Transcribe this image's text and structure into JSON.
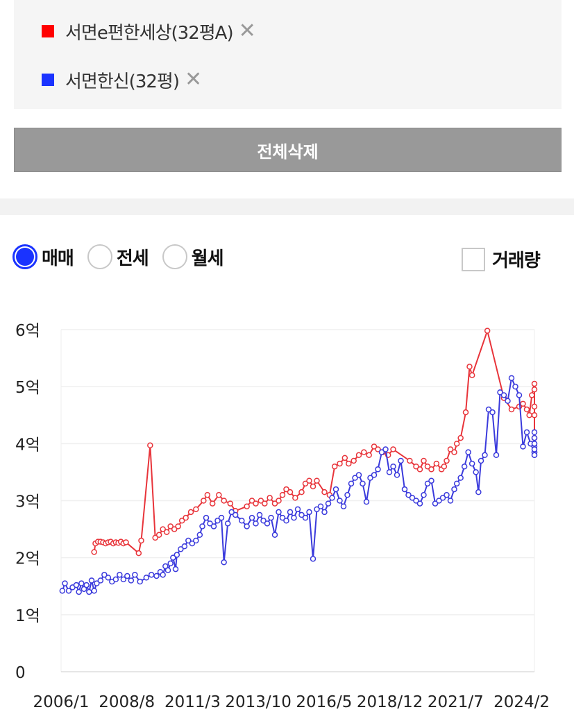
{
  "compare": {
    "items": [
      {
        "label": "서면e편한세상(32평A)",
        "color": "#ff0000"
      },
      {
        "label": "서면한신(32평)",
        "color": "#1a33ff"
      }
    ],
    "close_symbol": "✕",
    "delete_all_label": "전체삭제"
  },
  "options": {
    "deal_types": [
      {
        "label": "매매",
        "selected": true
      },
      {
        "label": "전세",
        "selected": false
      },
      {
        "label": "월세",
        "selected": false
      }
    ],
    "volume_label": "거래량",
    "volume_checked": false
  },
  "chart_data": {
    "type": "line",
    "x_tick_labels": [
      "2006/1",
      "2008/8",
      "2011/3",
      "2013/10",
      "2016/5",
      "2018/12",
      "2021/7",
      "2024/2"
    ],
    "x_ticks": [
      2006.0,
      2008.583,
      2011.167,
      2013.75,
      2016.333,
      2018.917,
      2021.5,
      2024.083
    ],
    "xlim": [
      2006.0,
      2024.6
    ],
    "y_ticks": [
      0,
      1,
      2,
      3,
      4,
      5,
      6
    ],
    "y_tick_labels": [
      "0",
      "1억",
      "2억",
      "3억",
      "4억",
      "5억",
      "6억"
    ],
    "ylim": [
      0,
      6
    ],
    "grid": true,
    "series": [
      {
        "color": "#e8343a",
        "points": [
          [
            2007.3,
            2.1
          ],
          [
            2007.35,
            2.25
          ],
          [
            2007.45,
            2.28
          ],
          [
            2007.55,
            2.28
          ],
          [
            2007.65,
            2.27
          ],
          [
            2007.75,
            2.25
          ],
          [
            2007.85,
            2.27
          ],
          [
            2007.95,
            2.28
          ],
          [
            2008.05,
            2.25
          ],
          [
            2008.15,
            2.27
          ],
          [
            2008.25,
            2.26
          ],
          [
            2008.35,
            2.28
          ],
          [
            2008.45,
            2.25
          ],
          [
            2008.55,
            2.27
          ],
          [
            2009.05,
            2.08
          ],
          [
            2009.15,
            2.3
          ],
          [
            2009.5,
            3.97
          ],
          [
            2009.7,
            2.35
          ],
          [
            2009.85,
            2.4
          ],
          [
            2010.0,
            2.5
          ],
          [
            2010.15,
            2.45
          ],
          [
            2010.3,
            2.55
          ],
          [
            2010.45,
            2.5
          ],
          [
            2010.6,
            2.55
          ],
          [
            2010.75,
            2.65
          ],
          [
            2010.9,
            2.7
          ],
          [
            2011.1,
            2.8
          ],
          [
            2011.3,
            2.85
          ],
          [
            2011.6,
            3.0
          ],
          [
            2011.75,
            3.1
          ],
          [
            2011.95,
            2.95
          ],
          [
            2012.2,
            3.1
          ],
          [
            2012.4,
            3.0
          ],
          [
            2012.65,
            2.95
          ],
          [
            2012.85,
            2.82
          ],
          [
            2013.3,
            2.9
          ],
          [
            2013.5,
            3.0
          ],
          [
            2013.65,
            2.95
          ],
          [
            2013.85,
            3.0
          ],
          [
            2014.0,
            2.95
          ],
          [
            2014.2,
            3.05
          ],
          [
            2014.4,
            2.95
          ],
          [
            2014.55,
            3.0
          ],
          [
            2014.7,
            3.1
          ],
          [
            2014.85,
            3.2
          ],
          [
            2015.0,
            3.15
          ],
          [
            2015.2,
            3.05
          ],
          [
            2015.45,
            3.15
          ],
          [
            2015.6,
            3.3
          ],
          [
            2015.75,
            3.35
          ],
          [
            2015.9,
            3.25
          ],
          [
            2016.05,
            3.35
          ],
          [
            2016.35,
            3.15
          ],
          [
            2016.55,
            3.1
          ],
          [
            2016.75,
            3.6
          ],
          [
            2016.95,
            3.65
          ],
          [
            2017.15,
            3.75
          ],
          [
            2017.3,
            3.65
          ],
          [
            2017.5,
            3.7
          ],
          [
            2017.7,
            3.8
          ],
          [
            2017.9,
            3.85
          ],
          [
            2018.1,
            3.8
          ],
          [
            2018.3,
            3.95
          ],
          [
            2018.45,
            3.9
          ],
          [
            2018.65,
            3.85
          ],
          [
            2018.85,
            3.8
          ],
          [
            2019.05,
            3.9
          ],
          [
            2019.7,
            3.7
          ],
          [
            2019.95,
            3.6
          ],
          [
            2020.1,
            3.55
          ],
          [
            2020.25,
            3.7
          ],
          [
            2020.4,
            3.6
          ],
          [
            2020.55,
            3.55
          ],
          [
            2020.75,
            3.65
          ],
          [
            2020.95,
            3.55
          ],
          [
            2021.05,
            3.6
          ],
          [
            2021.15,
            3.7
          ],
          [
            2021.3,
            3.9
          ],
          [
            2021.45,
            3.85
          ],
          [
            2021.55,
            4.0
          ],
          [
            2021.7,
            4.1
          ],
          [
            2021.9,
            4.55
          ],
          [
            2022.05,
            5.35
          ],
          [
            2022.15,
            5.2
          ],
          [
            2022.75,
            5.98
          ],
          [
            2023.4,
            4.8
          ],
          [
            2023.7,
            4.6
          ],
          [
            2024.0,
            4.65
          ],
          [
            2024.15,
            4.7
          ],
          [
            2024.3,
            4.6
          ],
          [
            2024.4,
            4.5
          ],
          [
            2024.5,
            4.85
          ],
          [
            2024.6,
            5.05
          ],
          [
            2024.7,
            4.95
          ],
          [
            2024.85,
            4.5
          ],
          [
            2024.95,
            4.1
          ],
          [
            2025.05,
            4.65
          ]
        ]
      },
      {
        "color": "#3a3adc",
        "points": [
          [
            2006.05,
            1.42
          ],
          [
            2006.15,
            1.55
          ],
          [
            2006.3,
            1.42
          ],
          [
            2006.45,
            1.48
          ],
          [
            2006.6,
            1.52
          ],
          [
            2006.7,
            1.4
          ],
          [
            2006.8,
            1.55
          ],
          [
            2006.9,
            1.45
          ],
          [
            2007.0,
            1.52
          ],
          [
            2007.1,
            1.4
          ],
          [
            2007.2,
            1.6
          ],
          [
            2007.3,
            1.42
          ],
          [
            2007.4,
            1.55
          ],
          [
            2007.55,
            1.6
          ],
          [
            2007.7,
            1.7
          ],
          [
            2007.85,
            1.65
          ],
          [
            2008.0,
            1.58
          ],
          [
            2008.15,
            1.62
          ],
          [
            2008.3,
            1.7
          ],
          [
            2008.45,
            1.62
          ],
          [
            2008.6,
            1.68
          ],
          [
            2008.75,
            1.6
          ],
          [
            2008.9,
            1.7
          ],
          [
            2009.1,
            1.58
          ],
          [
            2009.35,
            1.65
          ],
          [
            2009.55,
            1.7
          ],
          [
            2009.75,
            1.68
          ],
          [
            2009.9,
            1.75
          ],
          [
            2010.0,
            1.7
          ],
          [
            2010.1,
            1.85
          ],
          [
            2010.2,
            1.78
          ],
          [
            2010.3,
            1.9
          ],
          [
            2010.4,
            2.0
          ],
          [
            2010.5,
            1.8
          ],
          [
            2010.55,
            2.05
          ],
          [
            2010.7,
            2.15
          ],
          [
            2010.85,
            2.2
          ],
          [
            2011.0,
            2.3
          ],
          [
            2011.15,
            2.25
          ],
          [
            2011.3,
            2.3
          ],
          [
            2011.45,
            2.4
          ],
          [
            2011.55,
            2.55
          ],
          [
            2011.7,
            2.7
          ],
          [
            2011.85,
            2.6
          ],
          [
            2012.0,
            2.55
          ],
          [
            2012.15,
            2.65
          ],
          [
            2012.3,
            2.7
          ],
          [
            2012.4,
            1.92
          ],
          [
            2012.55,
            2.6
          ],
          [
            2012.7,
            2.8
          ],
          [
            2012.85,
            2.75
          ],
          [
            2013.1,
            2.65
          ],
          [
            2013.3,
            2.55
          ],
          [
            2013.5,
            2.7
          ],
          [
            2013.65,
            2.6
          ],
          [
            2013.8,
            2.75
          ],
          [
            2013.95,
            2.65
          ],
          [
            2014.1,
            2.6
          ],
          [
            2014.25,
            2.7
          ],
          [
            2014.4,
            2.4
          ],
          [
            2014.55,
            2.8
          ],
          [
            2014.7,
            2.7
          ],
          [
            2014.85,
            2.65
          ],
          [
            2015.0,
            2.8
          ],
          [
            2015.15,
            2.7
          ],
          [
            2015.3,
            2.85
          ],
          [
            2015.45,
            2.75
          ],
          [
            2015.6,
            2.7
          ],
          [
            2015.75,
            2.8
          ],
          [
            2015.9,
            1.98
          ],
          [
            2016.05,
            2.85
          ],
          [
            2016.2,
            2.9
          ],
          [
            2016.35,
            2.8
          ],
          [
            2016.5,
            2.95
          ],
          [
            2016.65,
            3.05
          ],
          [
            2016.8,
            3.2
          ],
          [
            2016.95,
            3.0
          ],
          [
            2017.1,
            2.9
          ],
          [
            2017.25,
            3.1
          ],
          [
            2017.4,
            3.3
          ],
          [
            2017.55,
            3.4
          ],
          [
            2017.7,
            3.45
          ],
          [
            2017.85,
            3.3
          ],
          [
            2018.0,
            2.98
          ],
          [
            2018.15,
            3.4
          ],
          [
            2018.3,
            3.45
          ],
          [
            2018.45,
            3.55
          ],
          [
            2018.6,
            3.85
          ],
          [
            2018.75,
            3.9
          ],
          [
            2018.9,
            3.5
          ],
          [
            2019.05,
            3.6
          ],
          [
            2019.2,
            3.45
          ],
          [
            2019.35,
            3.7
          ],
          [
            2019.5,
            3.2
          ],
          [
            2019.65,
            3.1
          ],
          [
            2019.8,
            3.05
          ],
          [
            2019.95,
            3.0
          ],
          [
            2020.1,
            2.95
          ],
          [
            2020.25,
            3.1
          ],
          [
            2020.4,
            3.3
          ],
          [
            2020.55,
            3.35
          ],
          [
            2020.7,
            2.95
          ],
          [
            2020.85,
            3.0
          ],
          [
            2021.0,
            3.05
          ],
          [
            2021.15,
            3.1
          ],
          [
            2021.3,
            3.0
          ],
          [
            2021.45,
            3.2
          ],
          [
            2021.55,
            3.3
          ],
          [
            2021.7,
            3.4
          ],
          [
            2021.85,
            3.6
          ],
          [
            2022.0,
            3.85
          ],
          [
            2022.15,
            3.65
          ],
          [
            2022.3,
            3.5
          ],
          [
            2022.4,
            3.15
          ],
          [
            2022.5,
            3.7
          ],
          [
            2022.65,
            3.8
          ],
          [
            2022.8,
            4.6
          ],
          [
            2022.95,
            4.55
          ],
          [
            2023.1,
            3.8
          ],
          [
            2023.25,
            4.9
          ],
          [
            2023.4,
            4.85
          ],
          [
            2023.55,
            4.75
          ],
          [
            2023.7,
            5.15
          ],
          [
            2023.85,
            5.0
          ],
          [
            2024.0,
            4.85
          ],
          [
            2024.15,
            3.95
          ],
          [
            2024.3,
            4.2
          ],
          [
            2024.45,
            4.0
          ],
          [
            2024.6,
            3.85
          ],
          [
            2024.7,
            3.8
          ],
          [
            2024.85,
            3.85
          ],
          [
            2024.95,
            4.1
          ],
          [
            2025.05,
            3.95
          ],
          [
            2025.15,
            4.0
          ],
          [
            2025.25,
            4.2
          ],
          [
            2025.35,
            3.85
          ],
          [
            2025.45,
            3.8
          ],
          [
            2025.55,
            3.9
          ],
          [
            2025.65,
            4.0
          ]
        ]
      }
    ]
  }
}
